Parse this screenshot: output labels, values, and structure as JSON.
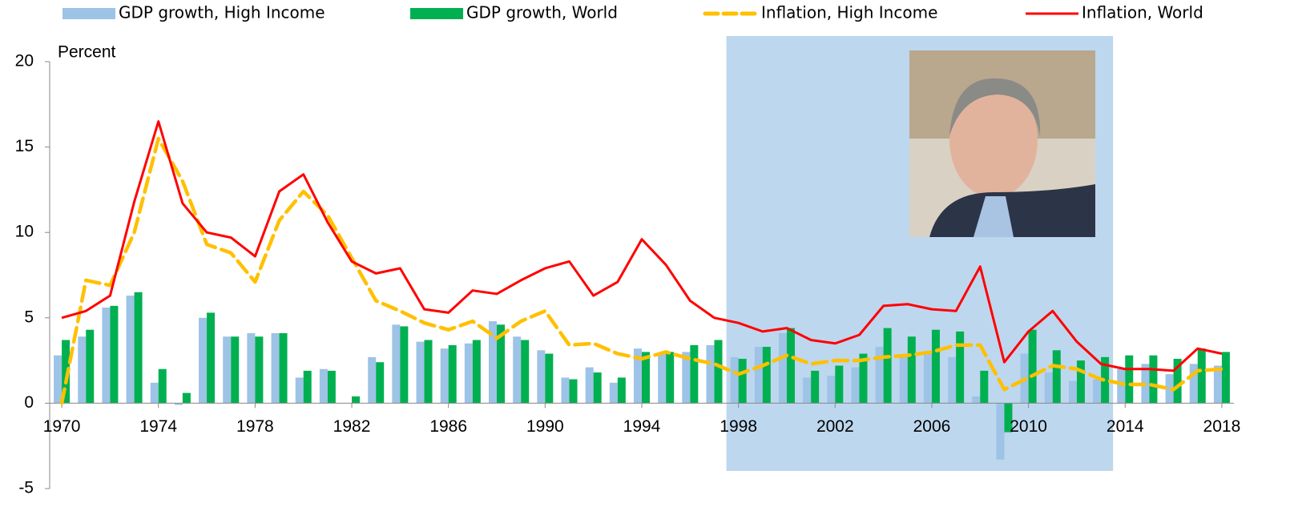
{
  "chart_data": {
    "type": "bar_line",
    "y_label": "Percent",
    "x": [
      1970,
      1971,
      1972,
      1973,
      1974,
      1975,
      1976,
      1977,
      1978,
      1979,
      1980,
      1981,
      1982,
      1983,
      1984,
      1985,
      1986,
      1987,
      1988,
      1989,
      1990,
      1991,
      1992,
      1993,
      1994,
      1995,
      1996,
      1997,
      1998,
      1999,
      2000,
      2001,
      2002,
      2003,
      2004,
      2005,
      2006,
      2007,
      2008,
      2009,
      2010,
      2011,
      2012,
      2013,
      2014,
      2015,
      2016,
      2017,
      2018
    ],
    "series": [
      {
        "name": "GDP growth, High Income",
        "kind": "bar",
        "color": "#9dc3e6",
        "values": [
          2.8,
          3.9,
          5.6,
          6.3,
          1.2,
          -0.1,
          5.0,
          3.9,
          4.1,
          4.1,
          1.5,
          2.0,
          0.0,
          2.7,
          4.6,
          3.6,
          3.2,
          3.5,
          4.8,
          3.9,
          3.1,
          1.5,
          2.1,
          1.2,
          3.2,
          2.9,
          3.0,
          3.4,
          2.7,
          3.3,
          4.1,
          1.5,
          1.6,
          2.1,
          3.3,
          2.7,
          2.9,
          2.7,
          0.4,
          -3.3,
          2.9,
          1.8,
          1.3,
          1.4,
          2.0,
          2.3,
          1.7,
          2.3,
          2.2
        ]
      },
      {
        "name": "GDP growth, World",
        "kind": "bar",
        "color": "#00b050",
        "values": [
          3.7,
          4.3,
          5.7,
          6.5,
          2.0,
          0.6,
          5.3,
          3.9,
          3.9,
          4.1,
          1.9,
          1.9,
          0.4,
          2.4,
          4.5,
          3.7,
          3.4,
          3.7,
          4.6,
          3.7,
          2.9,
          1.4,
          1.8,
          1.5,
          3.0,
          3.0,
          3.4,
          3.7,
          2.6,
          3.3,
          4.4,
          1.9,
          2.2,
          2.9,
          4.4,
          3.9,
          4.3,
          4.2,
          1.9,
          -1.7,
          4.3,
          3.1,
          2.5,
          2.7,
          2.8,
          2.8,
          2.6,
          3.2,
          3.0
        ]
      },
      {
        "name": "Inflation, High Income",
        "kind": "dashed-line",
        "color": "#ffc000",
        "values": [
          0.0,
          7.2,
          6.9,
          10.0,
          15.5,
          13.0,
          9.3,
          8.8,
          7.1,
          10.7,
          12.4,
          11.0,
          8.5,
          6.0,
          5.4,
          4.7,
          4.3,
          4.8,
          3.8,
          4.8,
          5.4,
          3.4,
          3.5,
          2.9,
          2.6,
          3.0,
          2.6,
          2.3,
          1.7,
          2.2,
          2.8,
          2.3,
          2.5,
          2.5,
          2.7,
          2.8,
          3.0,
          3.4,
          3.4,
          0.8,
          1.5,
          2.2,
          2.0,
          1.4,
          1.1,
          1.1,
          0.8,
          1.9,
          2.0
        ]
      },
      {
        "name": "Inflation, World",
        "kind": "line",
        "color": "#ff0000",
        "values": [
          5.0,
          5.4,
          6.3,
          11.8,
          16.5,
          11.7,
          10.0,
          9.7,
          8.6,
          12.4,
          13.4,
          10.6,
          8.3,
          7.6,
          7.9,
          5.5,
          5.3,
          6.6,
          6.4,
          7.2,
          7.9,
          8.3,
          6.3,
          7.1,
          9.6,
          8.1,
          6.0,
          5.0,
          4.7,
          4.2,
          4.4,
          3.7,
          3.5,
          4.0,
          5.7,
          5.8,
          5.5,
          5.4,
          8.0,
          2.4,
          4.2,
          5.4,
          3.6,
          2.3,
          2.0,
          2.0,
          1.9,
          3.2,
          2.9
        ]
      }
    ],
    "highlight": {
      "x": [
        1997.5,
        2013.5
      ],
      "color": "#bdd7ee"
    },
    "xlim": [
      1969.5,
      2018.5
    ],
    "xticks": [
      1970,
      1974,
      1978,
      1982,
      1986,
      1990,
      1994,
      1998,
      2002,
      2006,
      2010,
      2014,
      2018
    ],
    "ylim": [
      -5,
      20
    ],
    "yticks": [
      -5,
      0,
      5,
      10,
      15,
      20
    ],
    "legend": "top"
  }
}
